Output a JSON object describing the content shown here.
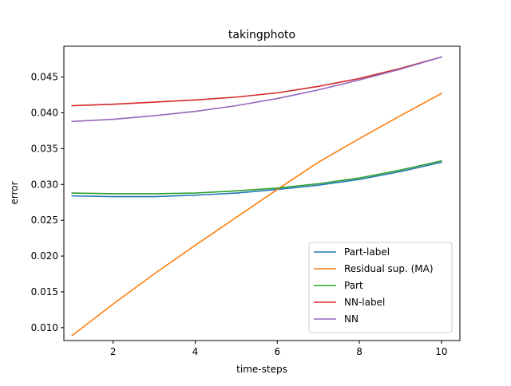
{
  "chart_data": {
    "type": "line",
    "title": "takingphoto",
    "xlabel": "time-steps",
    "ylabel": "error",
    "x": [
      1,
      2,
      3,
      4,
      5,
      6,
      7,
      8,
      9,
      10
    ],
    "xlim": [
      0.8,
      10.45
    ],
    "ylim": [
      0.0082,
      0.0493
    ],
    "xticks": [
      2,
      4,
      6,
      8,
      10
    ],
    "yticks": [
      0.01,
      0.015,
      0.02,
      0.025,
      0.03,
      0.035,
      0.04,
      0.045
    ],
    "ytick_labels": [
      "0.010",
      "0.015",
      "0.020",
      "0.025",
      "0.030",
      "0.035",
      "0.040",
      "0.045"
    ],
    "grid": false,
    "legend_position": "bottom-right",
    "series": [
      {
        "name": "Part-label",
        "color": "#1f77b4",
        "values": [
          0.0284,
          0.0283,
          0.0283,
          0.0285,
          0.0288,
          0.0293,
          0.0299,
          0.0307,
          0.0318,
          0.0331
        ]
      },
      {
        "name": "Residual sup. (MA)",
        "color": "#ff7f0e",
        "values": [
          0.0089,
          0.0133,
          0.0175,
          0.0215,
          0.0254,
          0.0293,
          0.0331,
          0.0364,
          0.0396,
          0.0427
        ]
      },
      {
        "name": "Part",
        "color": "#2ca02c",
        "values": [
          0.0288,
          0.0287,
          0.0287,
          0.0288,
          0.0291,
          0.0295,
          0.0301,
          0.0309,
          0.032,
          0.0333
        ]
      },
      {
        "name": "NN-label",
        "color": "#d62728",
        "values": [
          0.041,
          0.0412,
          0.0415,
          0.0418,
          0.0422,
          0.0428,
          0.0437,
          0.0448,
          0.0462,
          0.0478
        ]
      },
      {
        "name": "NN",
        "color": "#9467bd",
        "values": [
          0.0388,
          0.0391,
          0.0396,
          0.0402,
          0.041,
          0.042,
          0.0432,
          0.0446,
          0.0461,
          0.0478
        ]
      }
    ]
  }
}
